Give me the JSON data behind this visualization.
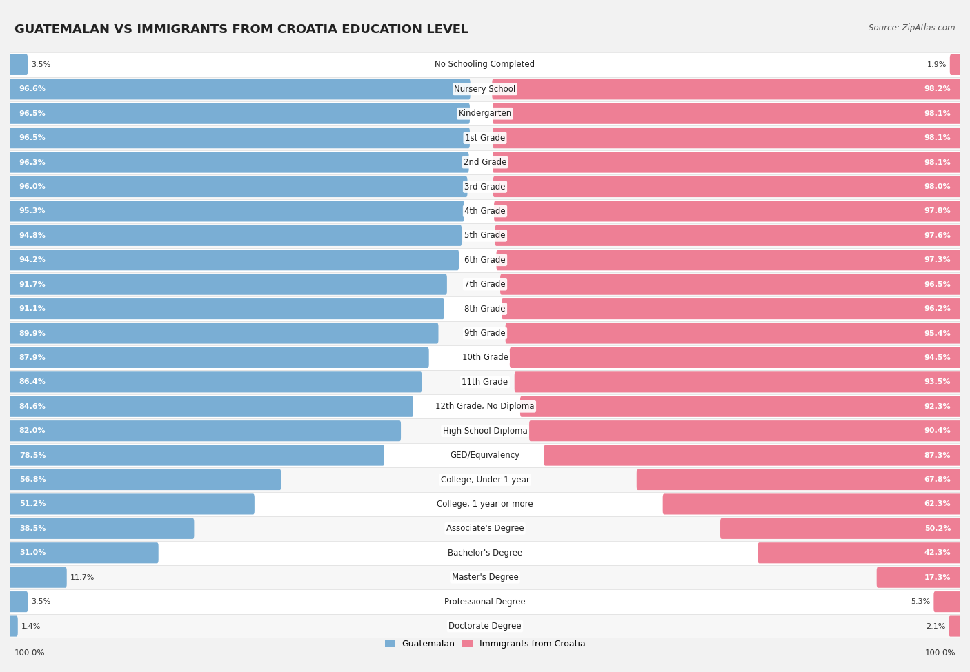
{
  "title": "GUATEMALAN VS IMMIGRANTS FROM CROATIA EDUCATION LEVEL",
  "source": "Source: ZipAtlas.com",
  "categories": [
    "No Schooling Completed",
    "Nursery School",
    "Kindergarten",
    "1st Grade",
    "2nd Grade",
    "3rd Grade",
    "4th Grade",
    "5th Grade",
    "6th Grade",
    "7th Grade",
    "8th Grade",
    "9th Grade",
    "10th Grade",
    "11th Grade",
    "12th Grade, No Diploma",
    "High School Diploma",
    "GED/Equivalency",
    "College, Under 1 year",
    "College, 1 year or more",
    "Associate's Degree",
    "Bachelor's Degree",
    "Master's Degree",
    "Professional Degree",
    "Doctorate Degree"
  ],
  "guatemalan": [
    3.5,
    96.6,
    96.5,
    96.5,
    96.3,
    96.0,
    95.3,
    94.8,
    94.2,
    91.7,
    91.1,
    89.9,
    87.9,
    86.4,
    84.6,
    82.0,
    78.5,
    56.8,
    51.2,
    38.5,
    31.0,
    11.7,
    3.5,
    1.4
  ],
  "croatia": [
    1.9,
    98.2,
    98.1,
    98.1,
    98.1,
    98.0,
    97.8,
    97.6,
    97.3,
    96.5,
    96.2,
    95.4,
    94.5,
    93.5,
    92.3,
    90.4,
    87.3,
    67.8,
    62.3,
    50.2,
    42.3,
    17.3,
    5.3,
    2.1
  ],
  "blue_color": "#7aaed4",
  "pink_color": "#ee7f95",
  "bg_color": "#f2f2f2",
  "row_color_odd": "#ffffff",
  "row_color_even": "#f7f7f7",
  "title_fontsize": 13,
  "label_fontsize": 8.5,
  "value_fontsize": 8,
  "legend_fontsize": 9
}
